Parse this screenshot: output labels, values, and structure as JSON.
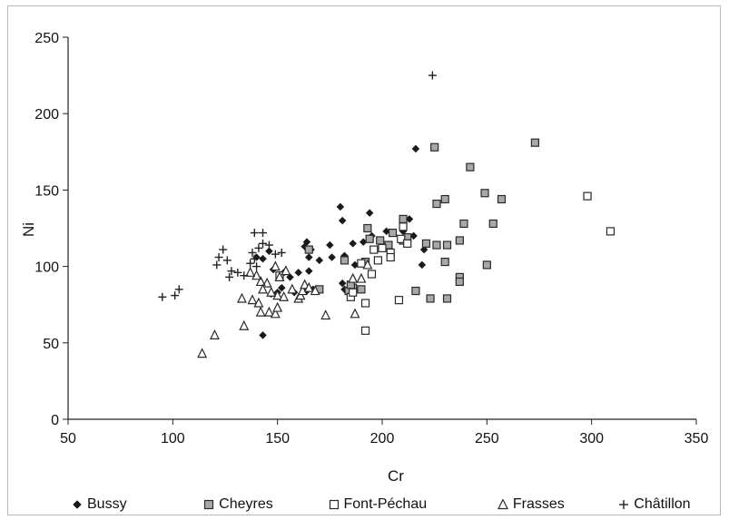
{
  "chart_data": {
    "type": "scatter",
    "title": "",
    "xlabel": "Cr",
    "ylabel": "Ni",
    "xlim": [
      50,
      350
    ],
    "ylim": [
      0,
      250
    ],
    "x_ticks": [
      50,
      100,
      150,
      200,
      250,
      300,
      350
    ],
    "y_ticks": [
      0,
      50,
      100,
      150,
      200,
      250
    ],
    "grid": false,
    "legend_position": "bottom",
    "series": [
      {
        "name": "Bussy",
        "marker": "diamond",
        "color": "#1a1a1a",
        "points": [
          [
            216,
            177
          ],
          [
            180,
            139
          ],
          [
            194,
            135
          ],
          [
            181,
            130
          ],
          [
            213,
            131
          ],
          [
            215,
            120
          ],
          [
            202,
            123
          ],
          [
            210,
            123
          ],
          [
            195,
            120
          ],
          [
            220,
            111
          ],
          [
            186,
            115
          ],
          [
            164,
            116
          ],
          [
            165,
            106
          ],
          [
            175,
            114
          ],
          [
            166,
            111
          ],
          [
            191,
            116
          ],
          [
            170,
            104
          ],
          [
            176,
            106
          ],
          [
            182,
            107
          ],
          [
            163,
            113
          ],
          [
            187,
            101
          ],
          [
            192,
            103
          ],
          [
            219,
            101
          ],
          [
            146,
            110
          ],
          [
            160,
            96
          ],
          [
            165,
            97
          ],
          [
            148,
            98
          ],
          [
            153,
            96
          ],
          [
            156,
            93
          ],
          [
            140,
            106
          ],
          [
            143,
            105
          ],
          [
            181,
            89
          ],
          [
            182,
            85
          ],
          [
            185,
            86
          ],
          [
            152,
            86
          ],
          [
            150,
            83
          ],
          [
            147,
            82
          ],
          [
            158,
            83
          ],
          [
            167,
            85
          ],
          [
            164,
            84
          ],
          [
            143,
            55
          ]
        ]
      },
      {
        "name": "Cheyres",
        "marker": "square",
        "color": "#9a9a9a",
        "points": [
          [
            225,
            178
          ],
          [
            273,
            181
          ],
          [
            242,
            165
          ],
          [
            249,
            148
          ],
          [
            230,
            144
          ],
          [
            226,
            141
          ],
          [
            257,
            144
          ],
          [
            193,
            125
          ],
          [
            210,
            131
          ],
          [
            239,
            128
          ],
          [
            253,
            128
          ],
          [
            221,
            115
          ],
          [
            226,
            114
          ],
          [
            237,
            117
          ],
          [
            205,
            122
          ],
          [
            199,
            117
          ],
          [
            194,
            118
          ],
          [
            203,
            114
          ],
          [
            210,
            117
          ],
          [
            212,
            119
          ],
          [
            231,
            114
          ],
          [
            192,
            103
          ],
          [
            182,
            104
          ],
          [
            230,
            103
          ],
          [
            250,
            101
          ],
          [
            237,
            93
          ],
          [
            237,
            90
          ],
          [
            216,
            84
          ],
          [
            223,
            79
          ],
          [
            231,
            79
          ],
          [
            186,
            86
          ],
          [
            190,
            85
          ],
          [
            184,
            84
          ],
          [
            185,
            88
          ],
          [
            165,
            111
          ],
          [
            170,
            85
          ]
        ]
      },
      {
        "name": "Font-Péchau",
        "marker": "square-open",
        "color": "#333333",
        "points": [
          [
            298,
            146
          ],
          [
            309,
            123
          ],
          [
            210,
            126
          ],
          [
            209,
            118
          ],
          [
            212,
            115
          ],
          [
            196,
            111
          ],
          [
            200,
            112
          ],
          [
            204,
            109
          ],
          [
            198,
            104
          ],
          [
            204,
            106
          ],
          [
            190,
            102
          ],
          [
            195,
            95
          ],
          [
            185,
            80
          ],
          [
            192,
            76
          ],
          [
            208,
            78
          ],
          [
            192,
            58
          ],
          [
            151,
            94
          ],
          [
            186,
            83
          ]
        ]
      },
      {
        "name": "Frasses",
        "marker": "triangle-open",
        "color": "#333333",
        "points": [
          [
            114,
            43
          ],
          [
            120,
            55
          ],
          [
            133,
            79
          ],
          [
            138,
            78
          ],
          [
            141,
            76
          ],
          [
            134,
            61
          ],
          [
            142,
            70
          ],
          [
            146,
            70
          ],
          [
            149,
            69
          ],
          [
            150,
            73
          ],
          [
            145,
            89
          ],
          [
            149,
            100
          ],
          [
            151,
            93
          ],
          [
            154,
            97
          ],
          [
            157,
            85
          ],
          [
            160,
            79
          ],
          [
            161,
            81
          ],
          [
            162,
            84
          ],
          [
            163,
            88
          ],
          [
            165,
            86
          ],
          [
            168,
            84
          ],
          [
            173,
            68
          ],
          [
            187,
            69
          ],
          [
            186,
            92
          ],
          [
            190,
            92
          ],
          [
            193,
            101
          ],
          [
            150,
            81
          ],
          [
            153,
            80
          ],
          [
            142,
            90
          ],
          [
            140,
            94
          ],
          [
            137,
            96
          ],
          [
            143,
            85
          ],
          [
            147,
            83
          ]
        ]
      },
      {
        "name": "Châtillon",
        "marker": "plus",
        "color": "#222222",
        "points": [
          [
            224,
            225
          ],
          [
            95,
            80
          ],
          [
            101,
            81
          ],
          [
            103,
            85
          ],
          [
            122,
            106
          ],
          [
            121,
            101
          ],
          [
            124,
            111
          ],
          [
            126,
            104
          ],
          [
            128,
            97
          ],
          [
            131,
            96
          ],
          [
            134,
            94
          ],
          [
            137,
            102
          ],
          [
            138,
            109
          ],
          [
            139,
            105
          ],
          [
            140,
            100
          ],
          [
            139,
            122
          ],
          [
            143,
            122
          ],
          [
            141,
            112
          ],
          [
            143,
            115
          ],
          [
            146,
            114
          ],
          [
            149,
            108
          ],
          [
            152,
            109
          ],
          [
            127,
            93
          ]
        ]
      }
    ]
  }
}
